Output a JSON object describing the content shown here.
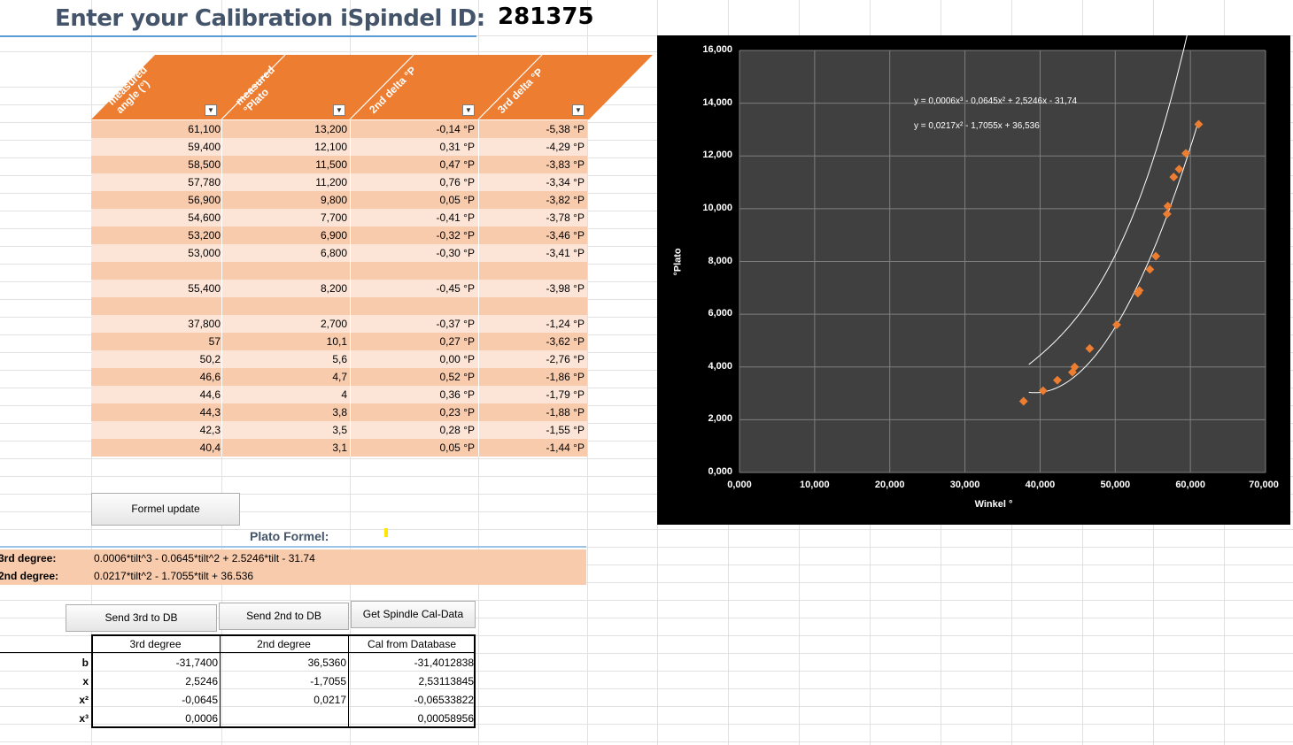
{
  "header": {
    "title": "Enter your Calibration iSpindel ID:",
    "calibration_id": "281375"
  },
  "table": {
    "columns": [
      "measured angle (°)",
      "measured °Plato",
      "2nd delta °P",
      "3rd delta °P"
    ],
    "rows": [
      [
        "61,100",
        "13,200",
        "-0,14 °P",
        "-5,38 °P"
      ],
      [
        "59,400",
        "12,100",
        "0,31 °P",
        "-4,29 °P"
      ],
      [
        "58,500",
        "11,500",
        "0,47 °P",
        "-3,83 °P"
      ],
      [
        "57,780",
        "11,200",
        "0,76 °P",
        "-3,34 °P"
      ],
      [
        "56,900",
        "9,800",
        "0,05 °P",
        "-3,82 °P"
      ],
      [
        "54,600",
        "7,700",
        "-0,41 °P",
        "-3,78 °P"
      ],
      [
        "53,200",
        "6,900",
        "-0,32 °P",
        "-3,46 °P"
      ],
      [
        "53,000",
        "6,800",
        "-0,30 °P",
        "-3,41 °P"
      ],
      [
        "",
        "",
        "",
        ""
      ],
      [
        "55,400",
        "8,200",
        "-0,45 °P",
        "-3,98 °P"
      ],
      [
        "",
        "",
        "",
        ""
      ],
      [
        "37,800",
        "2,700",
        "-0,37 °P",
        "-1,24 °P"
      ],
      [
        "57",
        "10,1",
        "0,27 °P",
        "-3,62 °P"
      ],
      [
        "50,2",
        "5,6",
        "0,00 °P",
        "-2,76 °P"
      ],
      [
        "46,6",
        "4,7",
        "0,52 °P",
        "-1,86 °P"
      ],
      [
        "44,6",
        "4",
        "0,36 °P",
        "-1,79 °P"
      ],
      [
        "44,3",
        "3,8",
        "0,23 °P",
        "-1,88 °P"
      ],
      [
        "42,3",
        "3,5",
        "0,28 °P",
        "-1,55 °P"
      ],
      [
        "40,4",
        "3,1",
        "0,05 °P",
        "-1,44 °P"
      ]
    ]
  },
  "buttons": {
    "formel_update": "Formel update",
    "send_3rd": "Send 3rd to DB",
    "send_2nd": "Send 2nd to DB",
    "get_cal": "Get Spindle Cal-Data"
  },
  "formel": {
    "title": "Plato Formel:",
    "third_label": "3rd degree:",
    "third_value": "0.0006*tilt^3 - 0.0645*tilt^2 + 2.5246*tilt - 31.74",
    "second_label": "2nd degree:",
    "second_value": "0.0217*tilt^2 - 1.7055*tilt + 36.536"
  },
  "coef_table": {
    "headers": [
      "3rd degree",
      "2nd degree",
      "Cal from Database"
    ],
    "rows": [
      {
        "label": "b",
        "vals": [
          "-31,7400",
          "36,5360",
          "-31,4012838"
        ]
      },
      {
        "label": "x",
        "vals": [
          "2,5246",
          "-1,7055",
          "2,53113845"
        ]
      },
      {
        "label": "x²",
        "vals": [
          "-0,0645",
          "0,0217",
          "-0,06533822"
        ]
      },
      {
        "label": "x³",
        "vals": [
          "0,0006",
          "",
          "0,00058956"
        ]
      }
    ]
  },
  "chart_data": {
    "type": "scatter",
    "xlabel": "Winkel °",
    "ylabel": "°Plato",
    "xlim": [
      0,
      70
    ],
    "ylim": [
      0,
      16
    ],
    "x_ticks": [
      "0,000",
      "10,000",
      "20,000",
      "30,000",
      "40,000",
      "50,000",
      "60,000",
      "70,000"
    ],
    "y_ticks": [
      "0,000",
      "2,000",
      "4,000",
      "6,000",
      "8,000",
      "10,000",
      "12,000",
      "14,000",
      "16,000"
    ],
    "grid": true,
    "points": [
      [
        61.1,
        13.2
      ],
      [
        59.4,
        12.1
      ],
      [
        58.5,
        11.5
      ],
      [
        57.78,
        11.2
      ],
      [
        56.9,
        9.8
      ],
      [
        54.6,
        7.7
      ],
      [
        53.2,
        6.9
      ],
      [
        53.0,
        6.8
      ],
      [
        55.4,
        8.2
      ],
      [
        37.8,
        2.7
      ],
      [
        57.0,
        10.1
      ],
      [
        50.2,
        5.6
      ],
      [
        46.6,
        4.7
      ],
      [
        44.6,
        4.0
      ],
      [
        44.3,
        3.8
      ],
      [
        42.3,
        3.5
      ],
      [
        40.4,
        3.1
      ]
    ],
    "trendlines": [
      {
        "label": "y = 0,0006x³ - 0,0645x² + 2,5246x - 31,74",
        "coef": [
          0.0006,
          -0.0645,
          2.5246,
          -31.74
        ]
      },
      {
        "label": "y = 0,0217x² - 1,7055x + 36,536",
        "coef": [
          0,
          0.0217,
          -1.7055,
          36.536
        ]
      }
    ],
    "colors": {
      "background": "#000000",
      "plot": "#404040",
      "marker": "#ed7d31",
      "trend": "#ffffff",
      "grid": "#7f7f7f"
    }
  }
}
